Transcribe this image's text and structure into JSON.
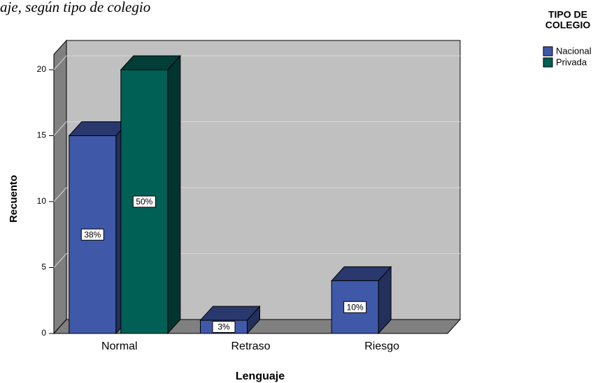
{
  "chart_data": {
    "type": "bar3d",
    "title": "aje, según tipo de colegio",
    "x_label": "Lenguaje",
    "y_label": "Recuento",
    "legend_title": [
      "TIPO DE",
      "COLEGIO"
    ],
    "categories": [
      "Normal",
      "Retraso",
      "Riesgo"
    ],
    "series": [
      {
        "name": "Nacional",
        "color": "#3f58a8",
        "values": [
          15,
          1,
          4
        ],
        "value_labels": [
          "38%",
          "3%",
          "10%"
        ]
      },
      {
        "name": "Privada",
        "color": "#006055",
        "values": [
          20,
          null,
          null
        ],
        "value_labels": [
          "50%",
          null,
          null
        ]
      }
    ],
    "ylim": [
      0,
      20
    ],
    "yticks": [
      0,
      5,
      10,
      15,
      20
    ],
    "grid": true,
    "legend": "right"
  }
}
